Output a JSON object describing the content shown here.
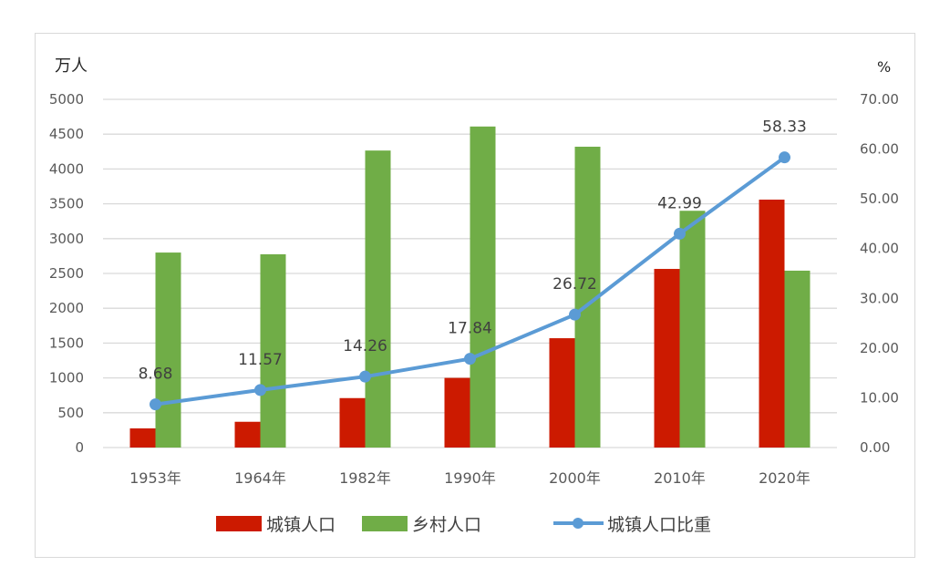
{
  "chart_data": {
    "type": "bar",
    "combo": "bar+line",
    "title": "",
    "categories": [
      "1953年",
      "1964年",
      "1982年",
      "1990年",
      "2000年",
      "2010年",
      "2020年"
    ],
    "series": [
      {
        "name": "城镇人口",
        "type": "bar",
        "axis": "left",
        "color": "#cc1a00",
        "values": [
          275,
          370,
          710,
          1000,
          1570,
          2565,
          3560
        ]
      },
      {
        "name": "乡村人口",
        "type": "bar",
        "axis": "left",
        "color": "#70ad47",
        "values": [
          2800,
          2775,
          4265,
          4610,
          4320,
          3400,
          2540
        ]
      },
      {
        "name": "城镇人口比重",
        "type": "line",
        "axis": "right",
        "color": "#5b9bd5",
        "values": [
          8.68,
          11.57,
          14.26,
          17.84,
          26.72,
          42.99,
          58.33
        ],
        "data_labels": [
          "8.68",
          "11.57",
          "14.26",
          "17.84",
          "26.72",
          "42.99",
          "58.33"
        ]
      }
    ],
    "xlabel": "",
    "ylabel": "万人",
    "ylabel_right": "%",
    "ylim": [
      0,
      5000
    ],
    "ylim_right": [
      0,
      70
    ],
    "yticks": [
      "0",
      "500",
      "1000",
      "1500",
      "2000",
      "2500",
      "3000",
      "3500",
      "4000",
      "4500",
      "5000"
    ],
    "yticks_right": [
      "0.00",
      "10.00",
      "20.00",
      "30.00",
      "40.00",
      "50.00",
      "60.00",
      "70.00"
    ],
    "grid": true,
    "legend_position": "bottom"
  },
  "axis": {
    "left_unit": "万人",
    "right_unit": "%"
  },
  "legend": [
    "城镇人口",
    "乡村人口",
    "城镇人口比重"
  ]
}
